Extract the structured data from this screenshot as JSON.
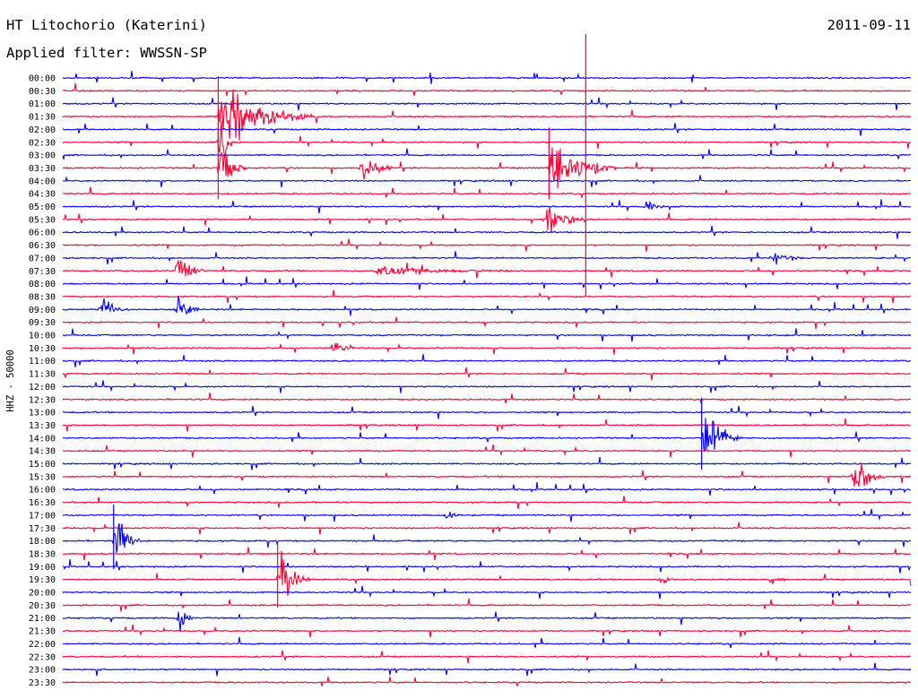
{
  "header": {
    "station": "HT Litochorio (Katerini)",
    "filter": "Applied filter: WWSSN-SP",
    "date": "2011-09-11"
  },
  "chart_data": {
    "type": "line",
    "title": "HT Litochorio (Katerini)",
    "subtitle": "Applied filter: WWSSN-SP",
    "ylabel": "HHZ - 50000",
    "xlabel": "",
    "grid": false,
    "trace_colors": [
      "#0000ff",
      "#ff0033"
    ],
    "rows": [
      "00:00",
      "00:30",
      "01:00",
      "01:30",
      "02:00",
      "02:30",
      "03:00",
      "03:30",
      "04:00",
      "04:30",
      "05:00",
      "05:30",
      "06:00",
      "06:30",
      "07:00",
      "07:30",
      "08:00",
      "08:30",
      "09:00",
      "09:30",
      "10:00",
      "10:30",
      "11:00",
      "11:30",
      "12:00",
      "12:30",
      "13:00",
      "13:30",
      "14:00",
      "14:30",
      "15:00",
      "15:30",
      "16:00",
      "16:30",
      "17:00",
      "17:30",
      "18:00",
      "18:30",
      "19:00",
      "19:30",
      "20:00",
      "20:30",
      "21:00",
      "21:30",
      "22:00",
      "22:30",
      "23:00",
      "23:30"
    ],
    "events": [
      {
        "row": "01:30",
        "minute": 5.5,
        "amplitude": 1.0,
        "duration_min": 3.5
      },
      {
        "row": "02:30",
        "minute": 5.5,
        "amplitude": 1.0,
        "duration_min": 0.5
      },
      {
        "row": "03:30",
        "minute": 5.5,
        "amplitude": 1.0,
        "duration_min": 1.0
      },
      {
        "row": "03:30",
        "minute": 10.5,
        "amplitude": 0.5,
        "duration_min": 1.2
      },
      {
        "row": "03:30",
        "minute": 17.2,
        "amplitude": 1.0,
        "duration_min": 2.4
      },
      {
        "row": "05:30",
        "minute": 17.0,
        "amplitude": 0.6,
        "duration_min": 1.5
      },
      {
        "row": "07:00",
        "minute": 25.0,
        "amplitude": 0.25,
        "duration_min": 1.5
      },
      {
        "row": "07:30",
        "minute": 4.0,
        "amplitude": 0.6,
        "duration_min": 1.0
      },
      {
        "row": "07:30",
        "minute": 11.0,
        "amplitude": 0.2,
        "duration_min": 5.5
      },
      {
        "row": "09:00",
        "minute": 1.3,
        "amplitude": 0.35,
        "duration_min": 1.2
      },
      {
        "row": "09:00",
        "minute": 4.0,
        "amplitude": 0.5,
        "duration_min": 0.8
      },
      {
        "row": "10:30",
        "minute": 9.5,
        "amplitude": 0.3,
        "duration_min": 0.8
      },
      {
        "row": "14:00",
        "minute": 22.6,
        "amplitude": 1.0,
        "duration_min": 1.5
      },
      {
        "row": "15:30",
        "minute": 27.9,
        "amplitude": 0.8,
        "duration_min": 1.2
      },
      {
        "row": "18:00",
        "minute": 1.8,
        "amplitude": 0.9,
        "duration_min": 1.0
      },
      {
        "row": "19:30",
        "minute": 7.6,
        "amplitude": 0.9,
        "duration_min": 1.2
      },
      {
        "row": "21:00",
        "minute": 4.0,
        "amplitude": 0.5,
        "duration_min": 0.7
      },
      {
        "row": "19:30",
        "minute": 21.0,
        "amplitude": 0.2,
        "duration_min": 0.8
      },
      {
        "row": "19:30",
        "minute": 25.0,
        "amplitude": 0.2,
        "duration_min": 0.6
      },
      {
        "row": "17:00",
        "minute": 13.5,
        "amplitude": 0.25,
        "duration_min": 0.7
      },
      {
        "row": "05:00",
        "minute": 20.5,
        "amplitude": 0.2,
        "duration_min": 1.0
      }
    ]
  }
}
